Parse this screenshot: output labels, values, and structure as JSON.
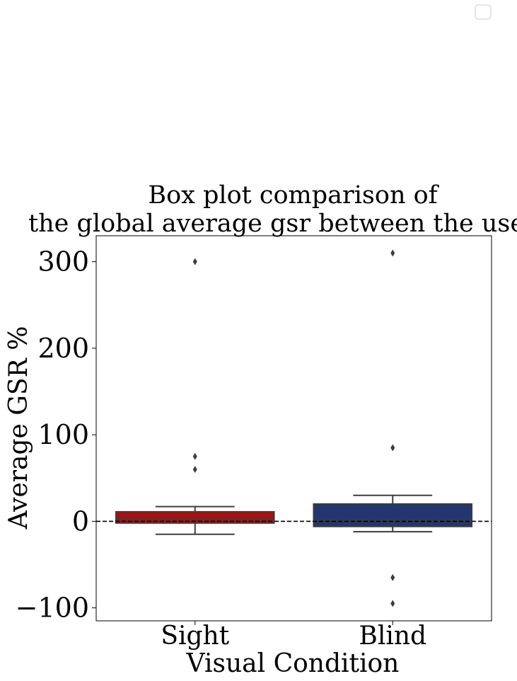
{
  "chart_data": {
    "type": "box",
    "title_lines": [
      "Box plot comparison of",
      "the global average gsr between the users."
    ],
    "xlabel": "Visual Condition",
    "ylabel": "Average GSR %",
    "categories": [
      "Sight",
      "Blind"
    ],
    "ylim": [
      -115,
      330
    ],
    "yticks": [
      -100,
      0,
      100,
      200,
      300
    ],
    "ytick_labels": [
      "−100",
      "0",
      "100",
      "200",
      "300"
    ],
    "reference_line": 0,
    "legend": "top-right, empty",
    "grid": false,
    "boxes": [
      {
        "whisker_low": -15,
        "q1": -2,
        "median": 3,
        "q3": 11,
        "whisker_high": 17,
        "fliers": [
          300,
          75,
          60
        ],
        "color": "#b50b0b"
      },
      {
        "whisker_low": -12,
        "q1": -6,
        "median": 1,
        "q3": 20,
        "whisker_high": 30,
        "fliers": [
          310,
          85,
          -65,
          -95
        ],
        "color": "#23366f"
      }
    ]
  }
}
